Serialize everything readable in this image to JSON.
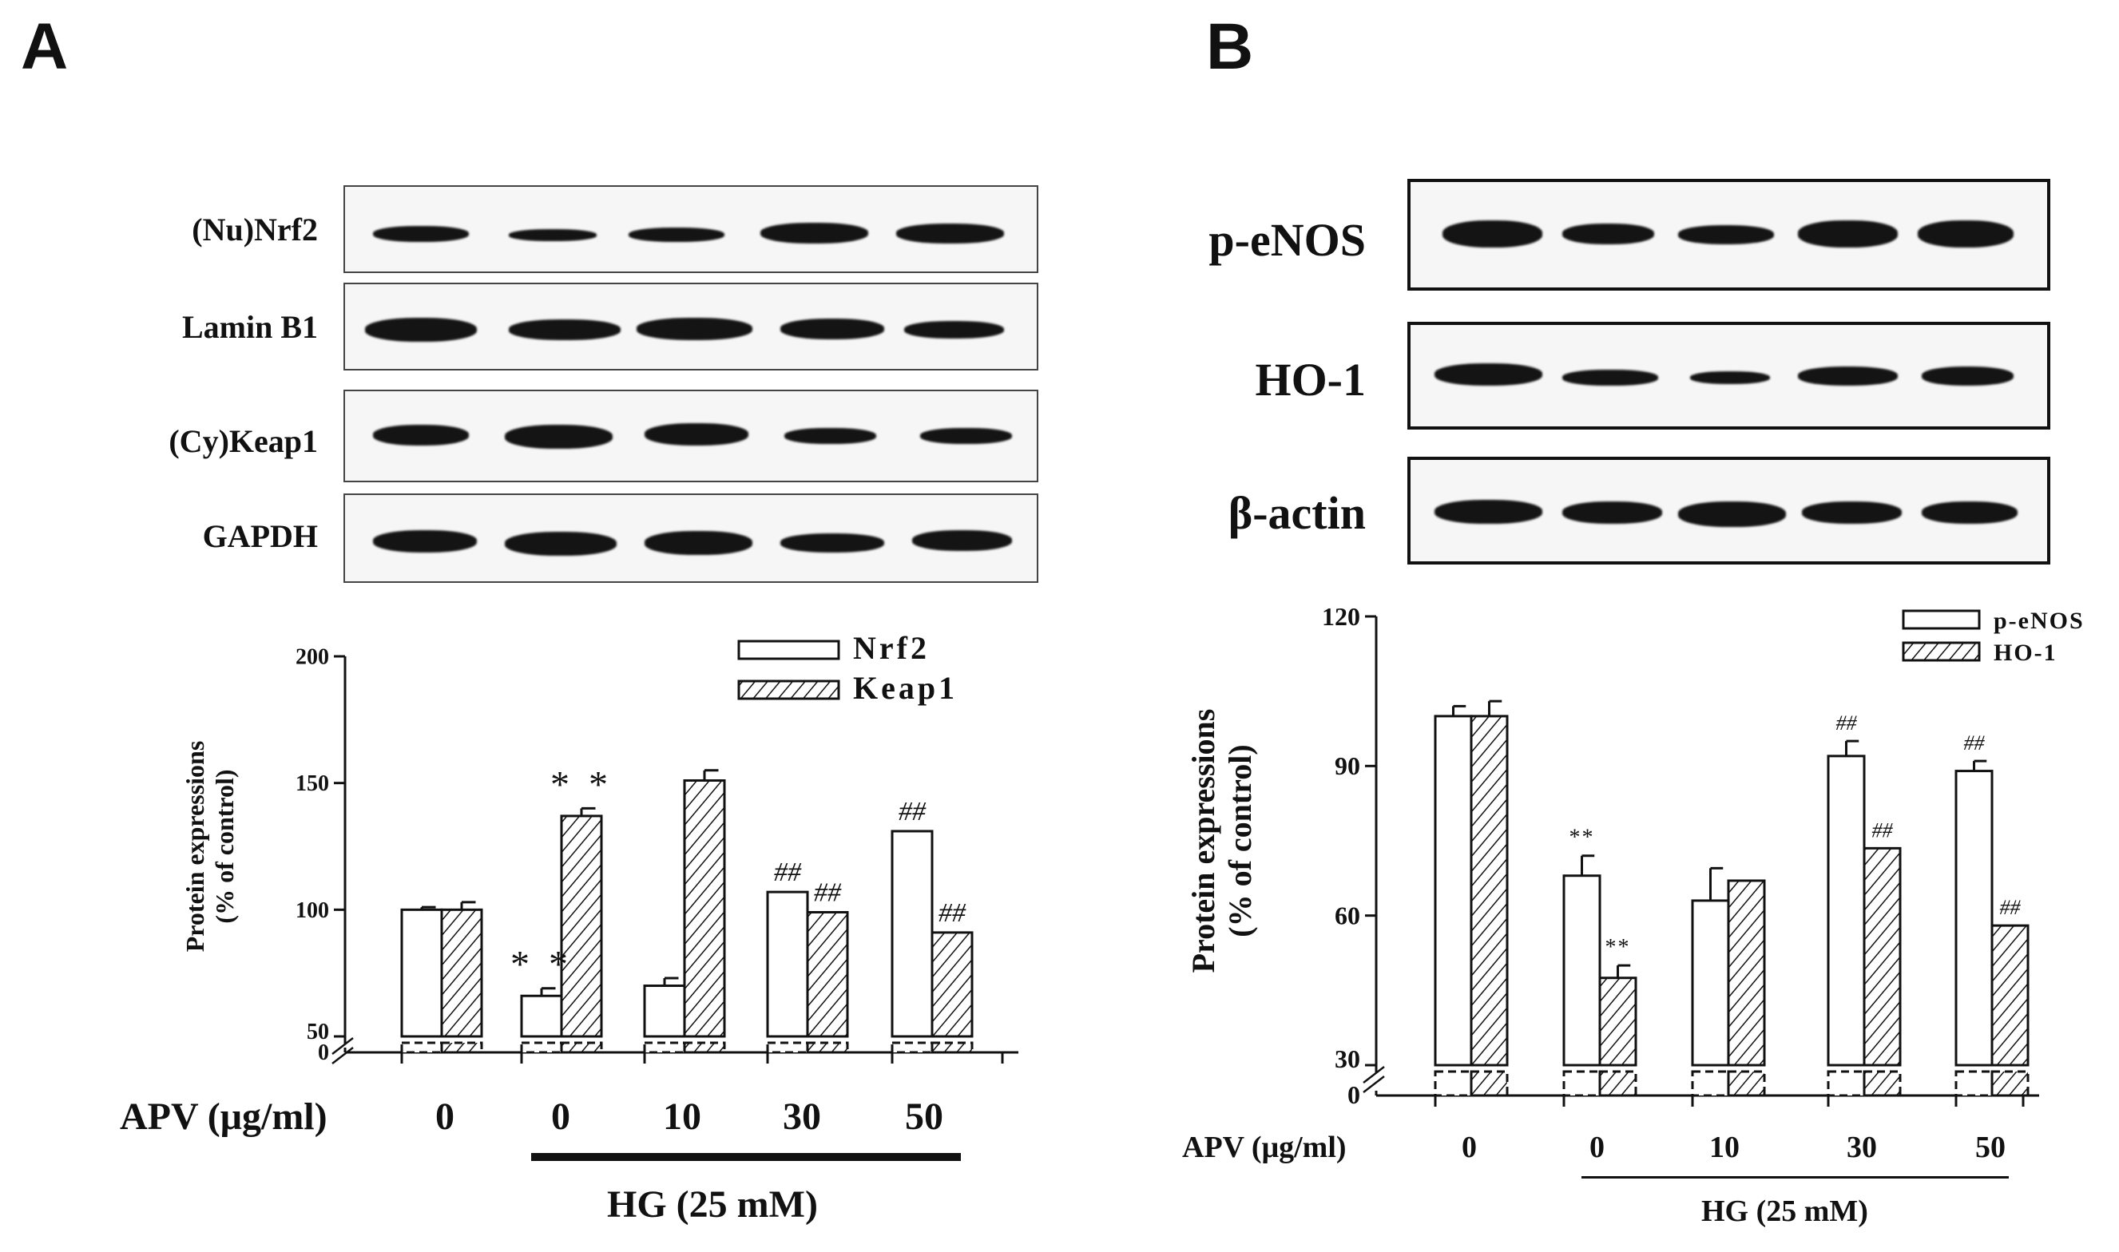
{
  "panel_a": {
    "letter": "A",
    "blot_labels": [
      "(Nu)Nrf2",
      "Lamin B1",
      "(Cy)Keap1",
      "GAPDH"
    ],
    "apv_label": "APV (μg/ml)",
    "doses": [
      "0",
      "0",
      "10",
      "30",
      "50"
    ],
    "hg_label": "HG (25 mM)"
  },
  "panel_b": {
    "letter": "B",
    "blot_labels": [
      "p-eNOS",
      "HO-1",
      "β-actin"
    ],
    "apv_label": "APV (μg/ml)",
    "doses": [
      "0",
      "0",
      "10",
      "30",
      "50"
    ],
    "hg_label": "HG (25 mM)"
  },
  "chart_data": [
    {
      "type": "bar",
      "panel": "A",
      "title": "",
      "ylabel": "Protein expressions (% of control)",
      "xlabel": "",
      "ylim": [
        50,
        200
      ],
      "axis_break": true,
      "yticks": [
        "0",
        "50",
        "100",
        "150",
        "200"
      ],
      "yticks_major": [
        50,
        100,
        150,
        200
      ],
      "categories": [
        "0",
        "0",
        "10",
        "30",
        "50"
      ],
      "legend_position": "top-right",
      "series": [
        {
          "name": "Nrf2",
          "pattern": "open",
          "values": [
            100,
            66,
            70,
            107,
            131
          ],
          "errors": [
            1,
            3,
            3,
            0,
            0
          ],
          "annotations": [
            "",
            "* *",
            "",
            "##",
            "##"
          ]
        },
        {
          "name": "Keap1",
          "pattern": "hatched",
          "values": [
            100,
            137,
            151,
            99,
            91
          ],
          "errors": [
            3,
            3,
            4,
            0,
            0
          ],
          "annotations": [
            "",
            "* *",
            "",
            "##",
            "##"
          ]
        }
      ]
    },
    {
      "type": "bar",
      "panel": "B",
      "title": "",
      "ylabel": "Protein expressions (% of control)",
      "xlabel": "",
      "ylim": [
        30,
        120
      ],
      "axis_break": true,
      "yticks": [
        "0",
        "30",
        "60",
        "90",
        "120"
      ],
      "yticks_major": [
        30,
        60,
        90,
        120
      ],
      "categories": [
        "0",
        "0",
        "10",
        "30",
        "50"
      ],
      "legend_position": "top-right",
      "series": [
        {
          "name": "p-eNOS",
          "pattern": "open",
          "values": [
            100,
            68,
            63,
            92,
            89
          ],
          "errors": [
            2,
            4,
            6.5,
            3,
            2
          ],
          "annotations": [
            "",
            "**",
            "",
            "##",
            "##"
          ]
        },
        {
          "name": "HO-1",
          "pattern": "hatched",
          "values": [
            100,
            47.5,
            67,
            73.5,
            58
          ],
          "errors": [
            3,
            2.5,
            0,
            0,
            0
          ],
          "annotations": [
            "",
            "**",
            "",
            "##",
            "##"
          ]
        }
      ]
    }
  ]
}
